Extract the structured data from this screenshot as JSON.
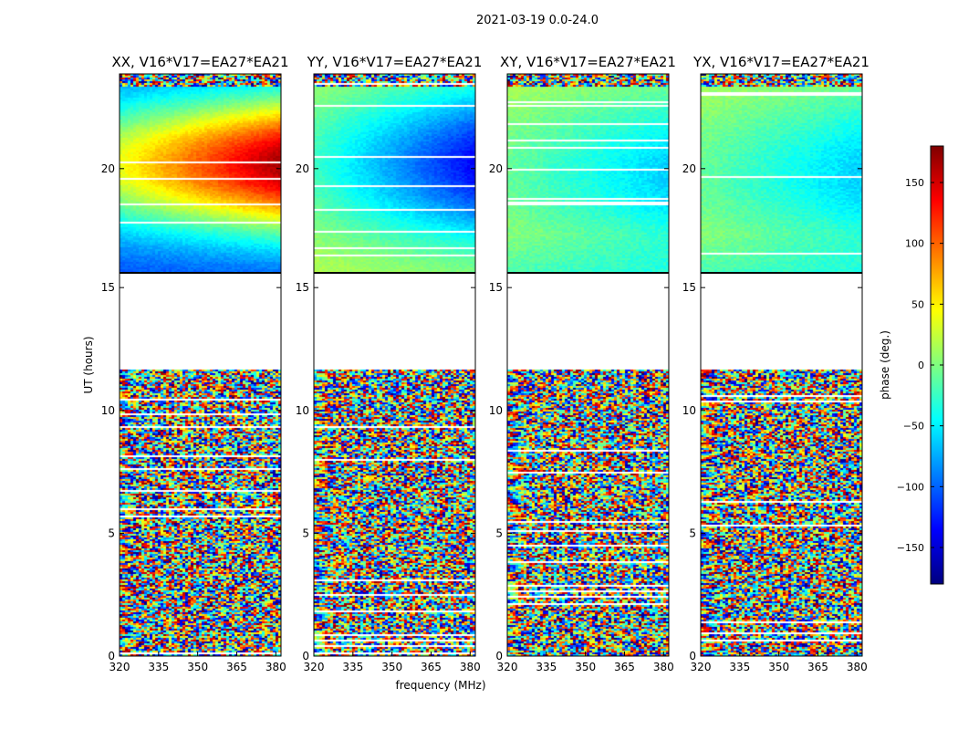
{
  "chart_data": {
    "type": "heatmap",
    "title": "2021-03-19 0.0-24.0",
    "xlabel": "frequency (MHz)",
    "ylabel": "UT (hours)",
    "xlim": [
      320,
      382
    ],
    "xticks": [
      320,
      335,
      350,
      365,
      380
    ],
    "ylim": [
      0,
      24
    ],
    "lower_ylim": [
      0,
      15.6
    ],
    "upper_ylim": [
      15.6,
      24
    ],
    "lower_yticks": [
      0,
      5,
      10,
      15
    ],
    "upper_yticks": [
      20
    ],
    "data_gap_hours": [
      11.7,
      15.6
    ],
    "colorbar": {
      "label": "phase (deg.)",
      "range": [
        -180,
        180
      ],
      "ticks": [
        150,
        100,
        50,
        0,
        -50,
        -100,
        -150
      ],
      "tick_labels": [
        "150",
        "100",
        "50",
        "0",
        "−50",
        "−100",
        "−150"
      ],
      "colors": [
        "#00007f",
        "#0000ff",
        "#007fff",
        "#00ffff",
        "#7fff7f",
        "#ffff00",
        "#ff7f00",
        "#ff0000",
        "#7f0000"
      ]
    },
    "panels": [
      {
        "title": "XX, V16*V17=EA27*EA21",
        "pol": "XX"
      },
      {
        "title": "YY, V16*V17=EA27*EA21",
        "pol": "YY"
      },
      {
        "title": "XY, V16*V17=EA27*EA21",
        "pol": "XY"
      },
      {
        "title": "YX, V16*V17=EA27*EA21",
        "pol": "YX"
      }
    ]
  }
}
